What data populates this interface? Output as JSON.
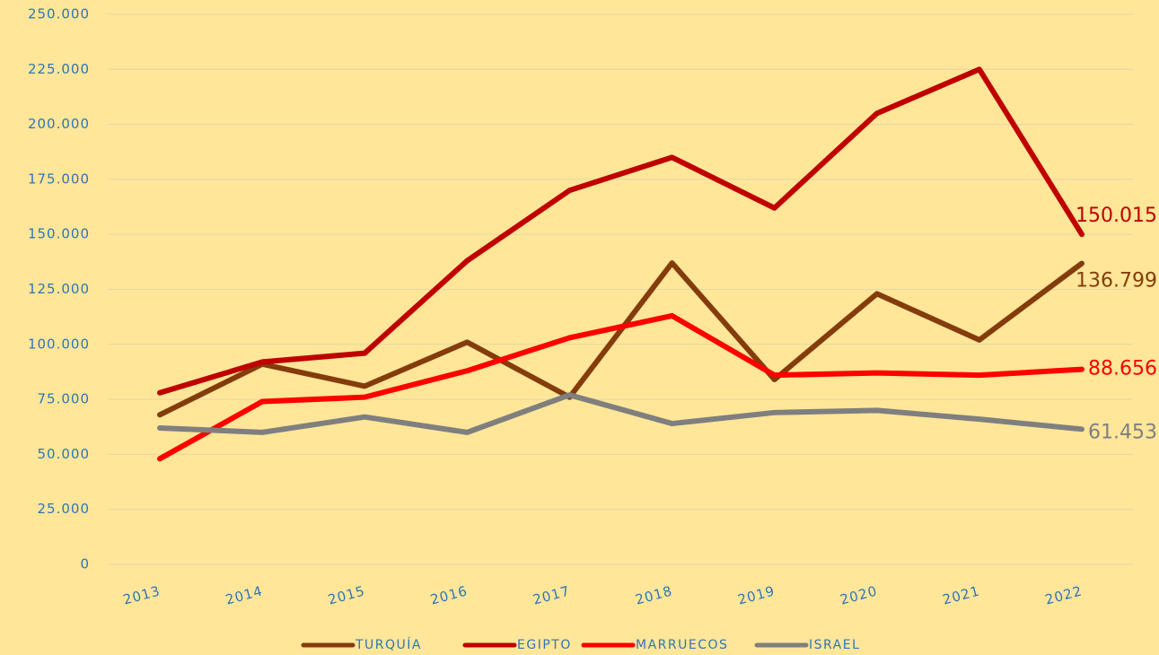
{
  "chart_data": {
    "type": "line",
    "categories": [
      "2013",
      "2014",
      "2015",
      "2016",
      "2017",
      "2018",
      "2019",
      "2020",
      "2021",
      "2022"
    ],
    "ylim": [
      0,
      250000
    ],
    "yticks": [
      0,
      {
        "value": 25000,
        "label": "25.000"
      },
      {
        "value": 50000,
        "label": "50.000"
      },
      {
        "value": 75000,
        "label": "75.000"
      },
      {
        "value": 100000,
        "label": "100.000"
      },
      {
        "value": 125000,
        "label": "125.000"
      },
      {
        "value": 150000,
        "label": "150.000"
      },
      {
        "value": 175000,
        "label": "175.000"
      },
      {
        "value": 200000,
        "label": "200.000"
      },
      {
        "value": 225000,
        "label": "225.000"
      },
      {
        "value": 250000,
        "label": "250.000"
      }
    ],
    "grid": true,
    "legend": "bottom",
    "series": [
      {
        "name": "TURQUÍA",
        "color": "#843c0c",
        "values": [
          68000,
          91000,
          81000,
          101000,
          76000,
          137000,
          84000,
          123000,
          102000,
          136799
        ],
        "value_labels": [
          null,
          null,
          null,
          null,
          null,
          null,
          null,
          null,
          null,
          "136.799"
        ]
      },
      {
        "name": "EGIPTO",
        "color": "#c00000",
        "values": [
          78000,
          92000,
          96000,
          138000,
          170000,
          185000,
          162000,
          205000,
          225000,
          150015
        ],
        "value_labels": [
          null,
          null,
          null,
          null,
          null,
          null,
          null,
          null,
          null,
          "150.015"
        ]
      },
      {
        "name": "MARRUECOS",
        "color": "#ff0000",
        "values": [
          48000,
          74000,
          76000,
          88000,
          103000,
          113000,
          86000,
          87000,
          86000,
          88656
        ],
        "value_labels": [
          null,
          null,
          null,
          null,
          null,
          null,
          null,
          null,
          null,
          "88.656"
        ]
      },
      {
        "name": "ISRAEL",
        "color": "#7f7f7f",
        "values": [
          62000,
          60000,
          67000,
          60000,
          77000,
          64000,
          69000,
          70000,
          66000,
          61453
        ],
        "value_labels": [
          null,
          null,
          null,
          null,
          null,
          null,
          null,
          null,
          null,
          "61.453"
        ]
      }
    ]
  }
}
